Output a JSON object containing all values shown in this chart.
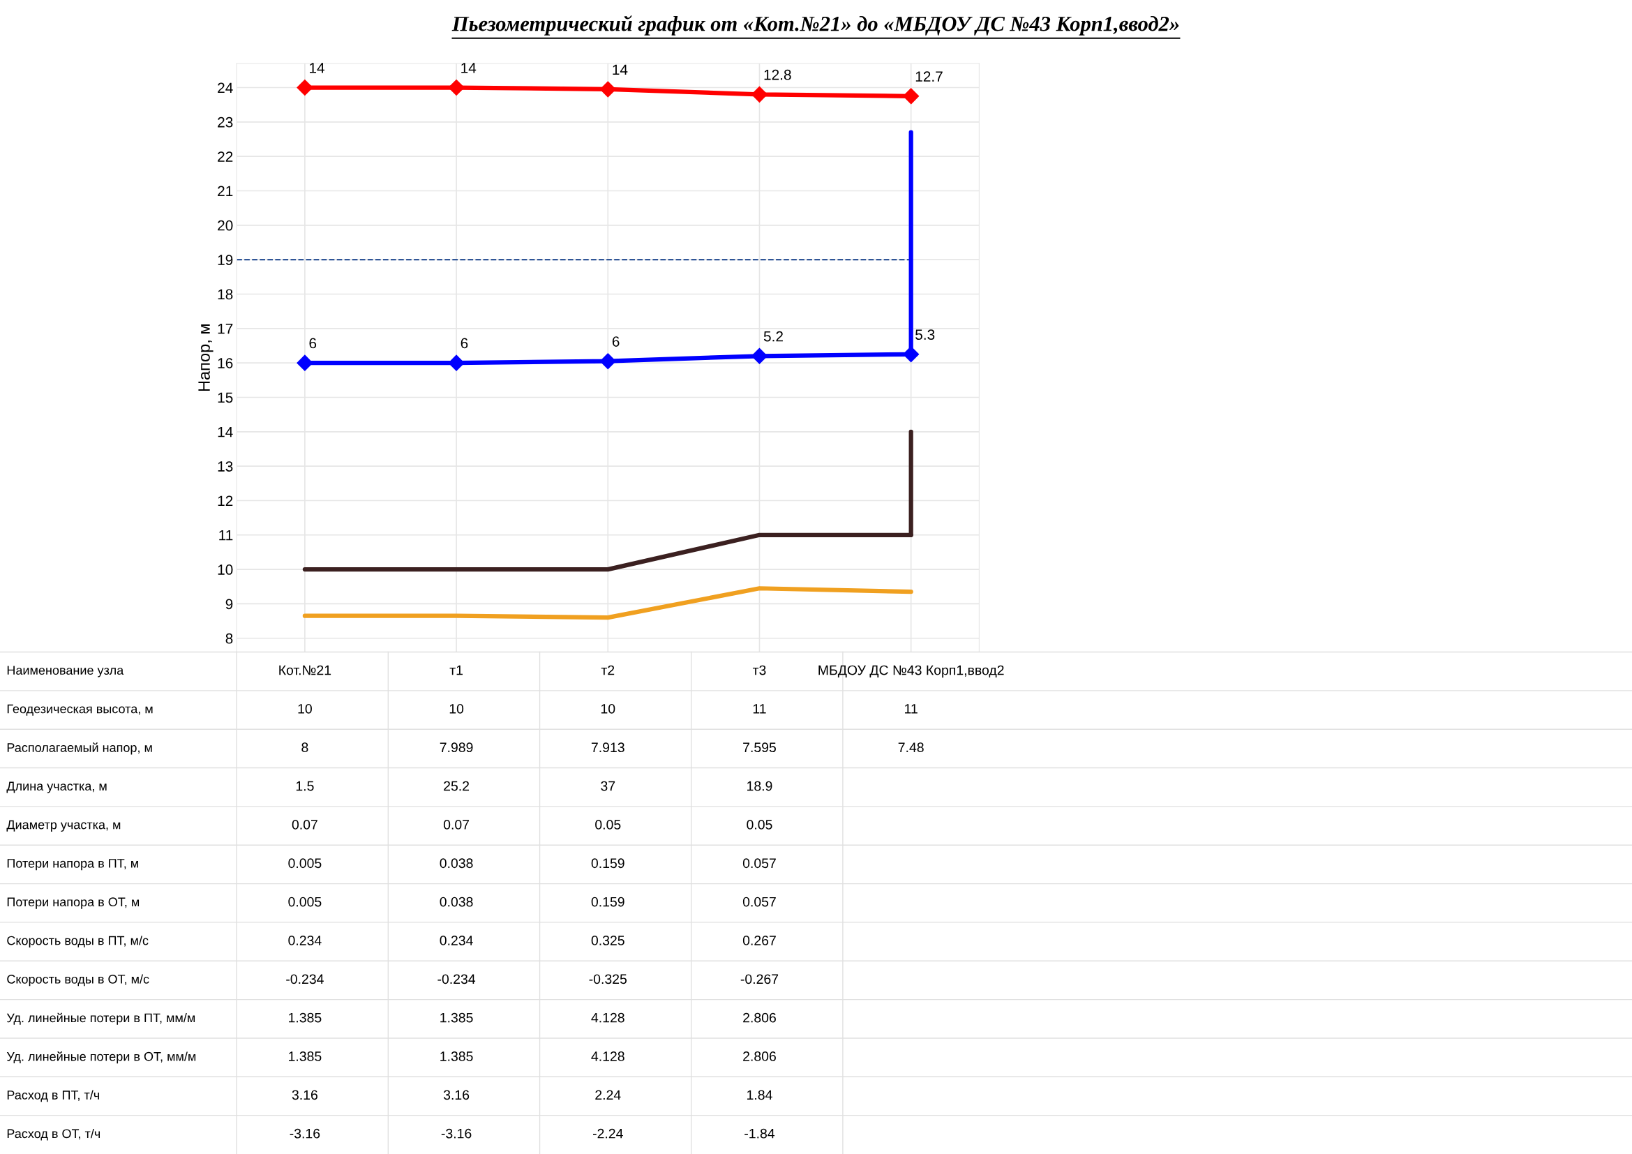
{
  "chart_data": [
    {
      "type": "line",
      "title": "Пьезометрический график от «Кот.№21» до «МБДОУ ДС №43 Корп1,ввод2»",
      "ylabel": "Напор, м",
      "categories": [
        "Кот.№21",
        "т1",
        "т2",
        "т3",
        "МБДОУ ДС №43 Корп1,ввод2"
      ],
      "ylim": [
        7.6,
        24.7
      ],
      "yticks": [
        8,
        9,
        10,
        11,
        12,
        13,
        14,
        15,
        16,
        17,
        18,
        19,
        20,
        21,
        22,
        23,
        24
      ],
      "grid": true,
      "ref_lines": [
        {
          "axis": "y",
          "value": 19,
          "color": "#2f5597",
          "line_style": "dashed"
        }
      ],
      "series": [
        {
          "color": "#ff0000",
          "marker": "diamond",
          "values": [
            24,
            24,
            23.95,
            23.8,
            23.75
          ]
        },
        {
          "color": "#0000ff",
          "marker": "diamond",
          "values": [
            16,
            16,
            16.05,
            16.2,
            16.25
          ]
        },
        {
          "color": "#0000ff",
          "x": [
            "МБДОУ ДС №43 Корп1,ввод2",
            "МБДОУ ДС №43 Корп1,ввод2"
          ],
          "values": [
            16.25,
            22.7
          ]
        },
        {
          "color": "#3b2020",
          "values": [
            10,
            10,
            10,
            11,
            11
          ]
        },
        {
          "color": "#3b2020",
          "x": [
            "МБДОУ ДС №43 Корп1,ввод2",
            "МБДОУ ДС №43 Корп1,ввод2"
          ],
          "values": [
            11,
            14
          ]
        },
        {
          "color": "#f0a020",
          "values": [
            8.65,
            8.65,
            8.6,
            9.45,
            9.35
          ]
        }
      ],
      "annotations": [
        {
          "text": "14",
          "x": "Кот.№21",
          "y": 24
        },
        {
          "text": "14",
          "x": "т1",
          "y": 24
        },
        {
          "text": "14",
          "x": "т2",
          "y": 23.95
        },
        {
          "text": "12.8",
          "x": "т3",
          "y": 23.8
        },
        {
          "text": "12.7",
          "x": "МБДОУ ДС №43 Корп1,ввод2",
          "y": 23.75
        },
        {
          "text": "6",
          "x": "Кот.№21",
          "y": 16
        },
        {
          "text": "6",
          "x": "т1",
          "y": 16
        },
        {
          "text": "6",
          "x": "т2",
          "y": 16.05
        },
        {
          "text": "5.2",
          "x": "т3",
          "y": 16.2
        },
        {
          "text": "5.3",
          "x": "МБДОУ ДС №43 Корп1,ввод2",
          "y": 16.25
        }
      ]
    },
    {
      "type": "other",
      "title": "Наименование узла",
      "categories": [
        "Кот.№21",
        "т1",
        "т2",
        "т3",
        "МБДОУ ДС №43 Корп1,ввод2"
      ],
      "y_categories": [
        "Геодезическая высота, м",
        "Располагаемый напор, м",
        "Длина участка, м",
        "Диаметр участка, м",
        "Потери напора в ПТ, м",
        "Потери напора в ОТ, м",
        "Скорость воды в ПТ, м/с",
        "Скорость воды в ОТ, м/с",
        "Уд. линейные потери в ПТ, мм/м",
        "Уд. линейные потери в ОТ, мм/м",
        "Расход в ПТ, т/ч",
        "Расход в ОТ, т/ч"
      ],
      "cell_labels": [
        [
          "10",
          "10",
          "10",
          "11",
          "11"
        ],
        [
          "8",
          "7.989",
          "7.913",
          "7.595",
          "7.48"
        ],
        [
          "1.5",
          "25.2",
          "37",
          "18.9",
          null
        ],
        [
          "0.07",
          "0.07",
          "0.05",
          "0.05",
          null
        ],
        [
          "0.005",
          "0.038",
          "0.159",
          "0.057",
          null
        ],
        [
          "0.005",
          "0.038",
          "0.159",
          "0.057",
          null
        ],
        [
          "0.234",
          "0.234",
          "0.325",
          "0.267",
          null
        ],
        [
          "-0.234",
          "-0.234",
          "-0.325",
          "-0.267",
          null
        ],
        [
          "1.385",
          "1.385",
          "4.128",
          "2.806",
          null
        ],
        [
          "1.385",
          "1.385",
          "4.128",
          "2.806",
          null
        ],
        [
          "3.16",
          "3.16",
          "2.24",
          "1.84",
          null
        ],
        [
          "-3.16",
          "-3.16",
          "-2.24",
          "-1.84",
          null
        ]
      ]
    }
  ]
}
